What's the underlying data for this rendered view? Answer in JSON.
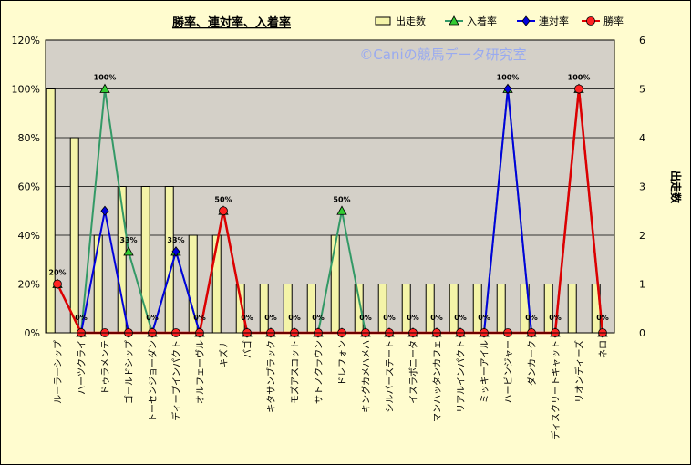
{
  "chart_data": {
    "type": "bar+line",
    "title": "勝率、連対率、入着率",
    "watermark": "©Caniの競馬データ研究室",
    "y2label": "出走数",
    "ylim": [
      0,
      1.2
    ],
    "y2lim": [
      0,
      6
    ],
    "yticks": [
      "0%",
      "20%",
      "40%",
      "60%",
      "80%",
      "100%",
      "120%"
    ],
    "y2ticks": [
      "0",
      "1",
      "2",
      "3",
      "4",
      "5",
      "6"
    ],
    "categories": [
      "ルーラーシップ",
      "ハーツクライ",
      "ドゥラメンテ",
      "ゴールドシップ",
      "トーセンジョーダン",
      "ディープインパクト",
      "オルフェーヴル",
      "キズナ",
      "バゴ",
      "キタサンブラック",
      "モズアスコット",
      "サトノクラウン",
      "ドレフォン",
      "キングカメハメハ",
      "シルバーステート",
      "イスラボニータ",
      "マンハッタンカフェ",
      "リアルインパクト",
      "ミッキーアイル",
      "ハービンジャー",
      "ダンカーク",
      "ディスクリートキャット",
      "リオンディーズ",
      "ネロ"
    ],
    "legend": [
      {
        "name": "出走数",
        "color": "#f4f4a8"
      },
      {
        "name": "入着率",
        "color": "#339966"
      },
      {
        "name": "連対率",
        "color": "#0000dd"
      },
      {
        "name": "勝率",
        "color": "#dd0000"
      }
    ],
    "series": [
      {
        "name": "出走数",
        "axis": "right",
        "kind": "bar",
        "values": [
          5,
          4,
          2,
          3,
          3,
          3,
          2,
          2,
          1,
          1,
          1,
          1,
          2,
          1,
          1,
          1,
          1,
          1,
          1,
          1,
          1,
          1,
          1,
          1
        ]
      },
      {
        "name": "入着率",
        "axis": "left",
        "kind": "line",
        "values": [
          0.2,
          0,
          1.0,
          0.333,
          0,
          0.333,
          0,
          0.5,
          0,
          0,
          0,
          0,
          0.5,
          0,
          0,
          0,
          0,
          0,
          0,
          1.0,
          0,
          0,
          1.0,
          0
        ]
      },
      {
        "name": "連対率",
        "axis": "left",
        "kind": "line",
        "values": [
          0.2,
          0,
          0.5,
          0,
          0,
          0.333,
          0,
          0.5,
          0,
          0,
          0,
          0,
          0,
          0,
          0,
          0,
          0,
          0,
          0,
          1.0,
          0,
          0,
          1.0,
          0
        ]
      },
      {
        "name": "勝率",
        "axis": "left",
        "kind": "line",
        "values": [
          0.2,
          0,
          0,
          0,
          0,
          0,
          0,
          0.5,
          0,
          0,
          0,
          0,
          0,
          0,
          0,
          0,
          0,
          0,
          0,
          0,
          0,
          0,
          1.0,
          0
        ]
      }
    ],
    "data_labels": [
      "20%",
      "0%",
      "100%",
      "33%",
      "0%",
      "33%",
      "0%",
      "50%",
      "0%",
      "0%",
      "0%",
      "0%",
      "50%",
      "0%",
      "0%",
      "0%",
      "0%",
      "0%",
      "0%",
      "100%",
      "0%",
      "0%",
      "100%",
      "0%"
    ],
    "grid": true,
    "legend_position": "top-right"
  }
}
